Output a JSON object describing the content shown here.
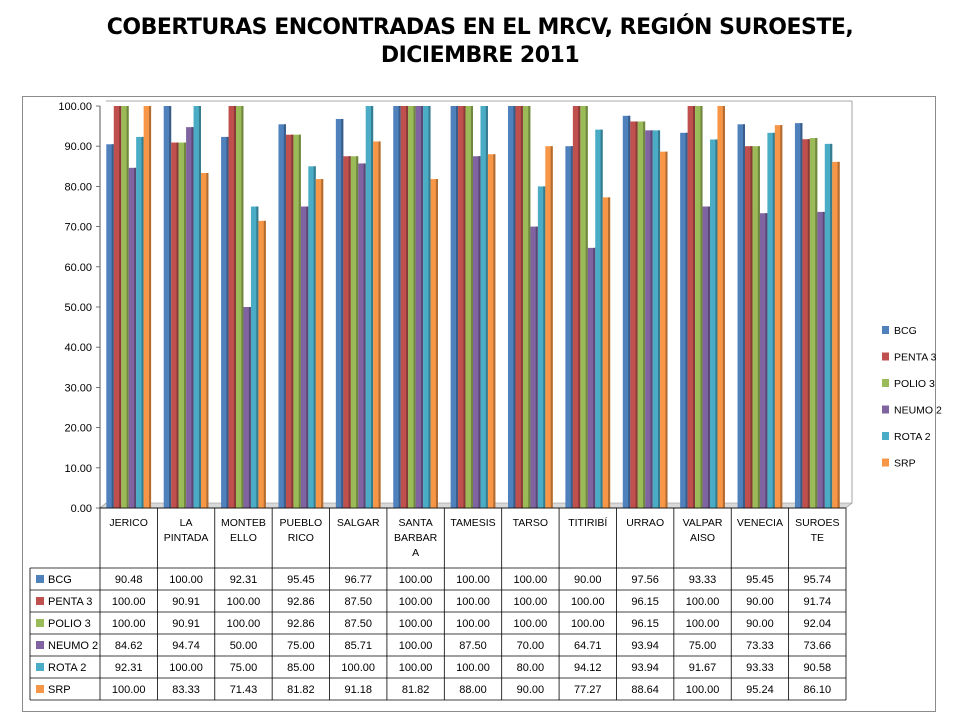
{
  "chart_data": {
    "type": "bar",
    "title": "COBERTURAS ENCONTRADAS EN EL MRCV, REGIÓN SUROESTE, DICIEMBRE 2011",
    "categories": [
      "JERICO",
      "LA PINTADA",
      "MONTEBELLO",
      "PUEBLO RICO",
      "SALGAR",
      "SANTA BARBARA",
      "TAMESIS",
      "TARSO",
      "TITIRIBÍ",
      "URRAO",
      "VALPARAISO",
      "VENECIA",
      "SUROESTE"
    ],
    "category_label_lines": [
      [
        "JERICO"
      ],
      [
        "LA",
        "PINTADA"
      ],
      [
        "MONTEB",
        "ELLO"
      ],
      [
        "PUEBLO",
        "RICO"
      ],
      [
        "SALGAR"
      ],
      [
        "SANTA",
        "BARBAR",
        "A"
      ],
      [
        "TAMESIS"
      ],
      [
        "TARSO"
      ],
      [
        "TITIRIBÍ"
      ],
      [
        "URRAO"
      ],
      [
        "VALPAR",
        "AISO"
      ],
      [
        "VENECIA"
      ],
      [
        "SUROES",
        "TE"
      ]
    ],
    "series": [
      {
        "name": "BCG",
        "color": "#4F81BD",
        "values": [
          90.48,
          100.0,
          92.31,
          95.45,
          96.77,
          100.0,
          100.0,
          100.0,
          90.0,
          97.56,
          93.33,
          95.45,
          95.74
        ]
      },
      {
        "name": "PENTA 3",
        "color": "#C0504D",
        "values": [
          100.0,
          90.91,
          100.0,
          92.86,
          87.5,
          100.0,
          100.0,
          100.0,
          100.0,
          96.15,
          100.0,
          90.0,
          91.74
        ]
      },
      {
        "name": "POLIO 3",
        "color": "#9BBB59",
        "values": [
          100.0,
          90.91,
          100.0,
          92.86,
          87.5,
          100.0,
          100.0,
          100.0,
          100.0,
          96.15,
          100.0,
          90.0,
          92.04
        ]
      },
      {
        "name": "NEUMO 2",
        "color": "#8064A2",
        "values": [
          84.62,
          94.74,
          50.0,
          75.0,
          85.71,
          100.0,
          87.5,
          70.0,
          64.71,
          93.94,
          75.0,
          73.33,
          73.66
        ]
      },
      {
        "name": "ROTA 2",
        "color": "#4BACC6",
        "values": [
          92.31,
          100.0,
          75.0,
          85.0,
          100.0,
          100.0,
          100.0,
          80.0,
          94.12,
          93.94,
          91.67,
          93.33,
          90.58
        ]
      },
      {
        "name": "SRP",
        "color": "#F79646",
        "values": [
          100.0,
          83.33,
          71.43,
          81.82,
          91.18,
          81.82,
          88.0,
          90.0,
          77.27,
          88.64,
          100.0,
          95.24,
          86.1
        ]
      }
    ],
    "ylim": [
      0,
      100
    ],
    "y_ticks": [
      "0.00",
      "10.00",
      "20.00",
      "30.00",
      "40.00",
      "50.00",
      "60.00",
      "70.00",
      "80.00",
      "90.00",
      "100.00"
    ],
    "grid": false,
    "legend": "right",
    "data_table": true
  }
}
